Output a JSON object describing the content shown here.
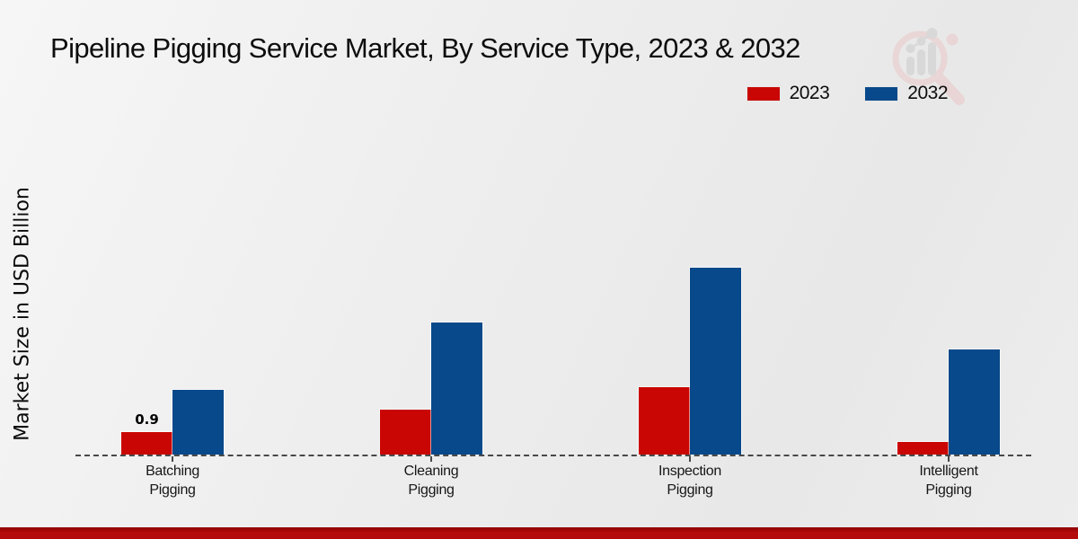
{
  "page": {
    "title": "Pipeline Pigging Service Market, By Service Type, 2023 & 2032"
  },
  "y_axis_label": "Market Size in USD Billion",
  "legend": {
    "items": [
      {
        "label": "2023",
        "color": "#c90603"
      },
      {
        "label": "2032",
        "color": "#07498a"
      }
    ]
  },
  "watermark": {
    "icon": "bar-chart-magnifier-logo",
    "ring_color": "#eac4c4",
    "bar_color": "#c9c9c9"
  },
  "chart_data": {
    "type": "bar",
    "title": "Pipeline Pigging Service Market, By Service Type, 2023 & 2032",
    "categories": [
      "Batching Pigging",
      "Cleaning Pigging",
      "Inspection Pigging",
      "Intelligent Pigging"
    ],
    "series": [
      {
        "name": "2023",
        "color": "#c90603",
        "values": [
          0.9,
          1.8,
          2.7,
          0.5
        ]
      },
      {
        "name": "2032",
        "color": "#07498a",
        "values": [
          2.6,
          5.3,
          7.5,
          4.2
        ]
      }
    ],
    "bar_value_labels": [
      {
        "category_index": 0,
        "series_index": 0,
        "text": "0.9"
      }
    ],
    "xlabel": "",
    "ylabel": "Market Size in USD Billion",
    "ylim": [
      0,
      8
    ],
    "grid": false,
    "legend_position": "top-right",
    "baseline_style": "dashed"
  }
}
